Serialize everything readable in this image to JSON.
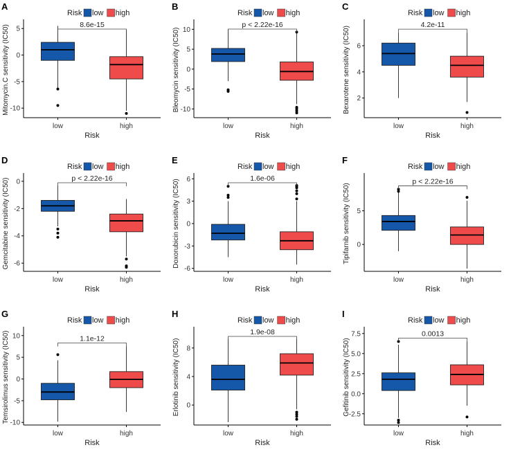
{
  "colors": {
    "low": "#1557a8",
    "high": "#f04b4b",
    "axis": "#000000",
    "median": "#000000"
  },
  "legend": {
    "title": "Risk",
    "items": [
      "low",
      "high"
    ]
  },
  "chart_data": [
    {
      "letter": "A",
      "type": "box",
      "ylabel": "Mitomycin.C sensitivity (IC50)",
      "xlabel": "Risk",
      "categories": [
        "low",
        "high"
      ],
      "ylim": [
        -11.8,
        6.2
      ],
      "yticks": [
        -10,
        -5,
        0,
        5
      ],
      "ytick_labels": [
        "-10",
        "-5",
        "0",
        "5"
      ],
      "pvalue": "8.6e-15",
      "boxes": [
        {
          "name": "low",
          "q1": -1.0,
          "median": 1.0,
          "q3": 2.4,
          "whisker_low": -6.2,
          "whisker_high": 5.5,
          "outliers": [
            -6.4,
            -9.5
          ]
        },
        {
          "name": "high",
          "q1": -4.5,
          "median": -1.8,
          "q3": -0.3,
          "whisker_low": -10.5,
          "whisker_high": 4.8,
          "outliers": [
            -11.0
          ]
        }
      ]
    },
    {
      "letter": "B",
      "type": "box",
      "ylabel": "Bleomycin sensitivity (IC50)",
      "xlabel": "Risk",
      "categories": [
        "low",
        "high"
      ],
      "ylim": [
        -12.2,
        11.8
      ],
      "yticks": [
        -10,
        -5,
        0,
        5,
        10
      ],
      "ytick_labels": [
        "-10",
        "-5",
        "0",
        "5",
        "10"
      ],
      "pvalue": "p < 2.22e-16",
      "boxes": [
        {
          "name": "low",
          "q1": 1.9,
          "median": 3.8,
          "q3": 5.2,
          "whisker_low": -3.0,
          "whisker_high": 10.0,
          "outliers": [
            -5.2,
            -5.6
          ]
        },
        {
          "name": "high",
          "q1": -2.8,
          "median": -0.6,
          "q3": 1.8,
          "whisker_low": -8.8,
          "whisker_high": 9.0,
          "outliers": [
            -9.6,
            -10.0,
            -10.5,
            -11.0,
            9.3
          ]
        }
      ]
    },
    {
      "letter": "C",
      "type": "box",
      "ylabel": "Bexarotene sensitivity (IC50)",
      "xlabel": "Risk",
      "categories": [
        "low",
        "high"
      ],
      "ylim": [
        0.5,
        7.8
      ],
      "yticks": [
        2,
        4,
        6
      ],
      "ytick_labels": [
        "2",
        "4",
        "6"
      ],
      "pvalue": "4.2e-11",
      "boxes": [
        {
          "name": "low",
          "q1": 4.5,
          "median": 5.4,
          "q3": 6.2,
          "whisker_low": 2.0,
          "whisker_high": 7.0,
          "outliers": []
        },
        {
          "name": "high",
          "q1": 3.6,
          "median": 4.5,
          "q3": 5.2,
          "whisker_low": 1.7,
          "whisker_high": 7.0,
          "outliers": [
            0.9
          ]
        }
      ]
    },
    {
      "letter": "D",
      "type": "box",
      "ylabel": "Gemcitabine sensitivity (IC50)",
      "xlabel": "Risk",
      "categories": [
        "low",
        "high"
      ],
      "ylim": [
        -6.6,
        0.4
      ],
      "yticks": [
        -6,
        -4,
        -2,
        0
      ],
      "ytick_labels": [
        "-6",
        "-4",
        "-2",
        "0"
      ],
      "pvalue": "p < 2.22e-16",
      "boxes": [
        {
          "name": "low",
          "q1": -2.2,
          "median": -1.8,
          "q3": -1.4,
          "whisker_low": -3.3,
          "whisker_high": -0.3,
          "outliers": [
            -3.5,
            -3.8,
            -4.1
          ]
        },
        {
          "name": "high",
          "q1": -3.7,
          "median": -2.9,
          "q3": -2.4,
          "whisker_low": -5.5,
          "whisker_high": -1.3,
          "outliers": [
            -5.7,
            -6.2,
            -6.3
          ]
        }
      ]
    },
    {
      "letter": "E",
      "type": "box",
      "ylabel": "Doxorubicin sensitivity (IC50)",
      "xlabel": "Risk",
      "categories": [
        "low",
        "high"
      ],
      "ylim": [
        -6.4,
        6.4
      ],
      "yticks": [
        -6,
        -3,
        0,
        3,
        6
      ],
      "ytick_labels": [
        "-6",
        "-3",
        "0",
        "3",
        "6"
      ],
      "pvalue": "1.6e-06",
      "boxes": [
        {
          "name": "low",
          "q1": -2.2,
          "median": -1.3,
          "q3": -0.1,
          "whisker_low": -4.5,
          "whisker_high": 3.0,
          "outliers": [
            3.5,
            3.8,
            5.0
          ]
        },
        {
          "name": "high",
          "q1": -3.5,
          "median": -2.3,
          "q3": -1.1,
          "whisker_low": -5.5,
          "whisker_high": 3.0,
          "outliers": [
            3.3,
            4.0,
            4.4,
            4.8,
            5.0,
            5.1
          ]
        }
      ]
    },
    {
      "letter": "F",
      "type": "box",
      "ylabel": "Tipifarnib sensitivity (IC50)",
      "xlabel": "Risk",
      "categories": [
        "low",
        "high"
      ],
      "ylim": [
        -4.0,
        10.2
      ],
      "yticks": [
        0,
        5
      ],
      "ytick_labels": [
        "0",
        "5"
      ],
      "pvalue": "p < 2.22e-16",
      "boxes": [
        {
          "name": "low",
          "q1": 2.1,
          "median": 3.4,
          "q3": 4.3,
          "whisker_low": -1.0,
          "whisker_high": 7.8,
          "outliers": [
            7.9,
            8.2
          ]
        },
        {
          "name": "high",
          "q1": 0.0,
          "median": 1.4,
          "q3": 2.6,
          "whisker_low": -3.6,
          "whisker_high": 6.5,
          "outliers": [
            7.0
          ]
        }
      ]
    },
    {
      "letter": "G",
      "type": "box",
      "ylabel": "Temsirolimus sensitivity (IC50)",
      "xlabel": "Risk",
      "categories": [
        "low",
        "high"
      ],
      "ylim": [
        -10.6,
        11.4
      ],
      "yticks": [
        -10,
        -5,
        0,
        5,
        10
      ],
      "ytick_labels": [
        "-10",
        "-5",
        "0",
        "5",
        "10"
      ],
      "pvalue": "1.1e-12",
      "boxes": [
        {
          "name": "low",
          "q1": -4.8,
          "median": -3.0,
          "q3": -1.0,
          "whisker_low": -9.8,
          "whisker_high": 4.3,
          "outliers": [
            5.6
          ]
        },
        {
          "name": "high",
          "q1": -2.0,
          "median": -0.1,
          "q3": 1.7,
          "whisker_low": -7.6,
          "whisker_high": 7.5,
          "outliers": []
        }
      ]
    },
    {
      "letter": "H",
      "type": "box",
      "ylabel": "Erlotinib sensitivity (IC50)",
      "xlabel": "Risk",
      "categories": [
        "low",
        "high"
      ],
      "ylim": [
        -2.8,
        10.6
      ],
      "yticks": [
        0,
        4,
        8
      ],
      "ytick_labels": [
        "0",
        "4",
        "8"
      ],
      "pvalue": "1.9e-08",
      "boxes": [
        {
          "name": "low",
          "q1": 2.1,
          "median": 3.6,
          "q3": 5.6,
          "whisker_low": -2.4,
          "whisker_high": 9.3,
          "outliers": []
        },
        {
          "name": "high",
          "q1": 4.2,
          "median": 5.9,
          "q3": 7.2,
          "whisker_low": -0.6,
          "whisker_high": 9.3,
          "outliers": [
            -1.0,
            -1.3,
            -1.6,
            -2.0
          ]
        }
      ]
    },
    {
      "letter": "I",
      "type": "box",
      "ylabel": "Gefitinib sensitivity (IC50)",
      "xlabel": "Risk",
      "categories": [
        "low",
        "high"
      ],
      "ylim": [
        -3.9,
        8.0
      ],
      "yticks": [
        -2.5,
        0.0,
        2.5,
        5.0,
        7.5
      ],
      "ytick_labels": [
        "-2.5",
        "0.0",
        "2.5",
        "5.0",
        "7.5"
      ],
      "pvalue": "0.0013",
      "boxes": [
        {
          "name": "low",
          "q1": 0.4,
          "median": 1.8,
          "q3": 2.6,
          "whisker_low": -3.0,
          "whisker_high": 6.1,
          "outliers": [
            6.5,
            -3.3,
            -3.6
          ]
        },
        {
          "name": "high",
          "q1": 1.1,
          "median": 2.4,
          "q3": 3.6,
          "whisker_low": -1.5,
          "whisker_high": 6.5,
          "outliers": [
            -2.9
          ]
        }
      ]
    }
  ]
}
